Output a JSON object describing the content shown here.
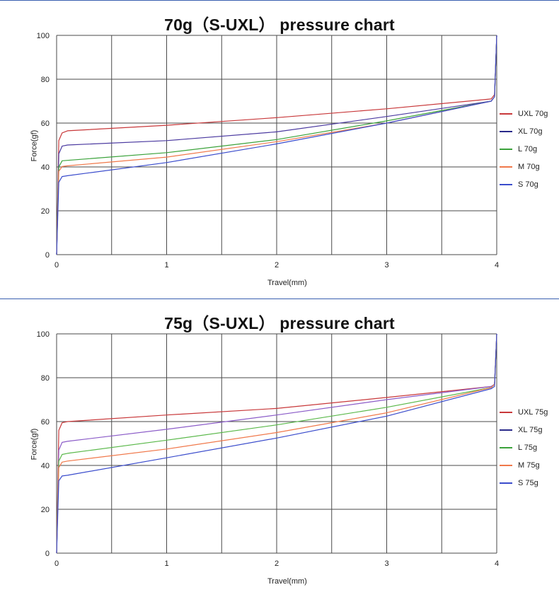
{
  "chart_data": [
    {
      "type": "line",
      "title": "70g（S-UXL） pressure chart",
      "xlabel": "Travel(mm)",
      "ylabel": "Force(gf)",
      "xlim": [
        0,
        4
      ],
      "ylim": [
        0,
        100
      ],
      "x_ticks": [
        "0",
        "1",
        "2",
        "3",
        "4"
      ],
      "y_ticks": [
        "0",
        "20",
        "40",
        "60",
        "80",
        "100"
      ],
      "grid": true,
      "legend_position": "right",
      "series": [
        {
          "name": "UXL 70g",
          "color": "#c8383a",
          "points": [
            [
              0,
              0
            ],
            [
              0.02,
              52
            ],
            [
              0.05,
              55.5
            ],
            [
              0.1,
              56.5
            ],
            [
              1,
              59
            ],
            [
              2,
              62.5
            ],
            [
              3,
              66.5
            ],
            [
              3.95,
              71
            ],
            [
              3.98,
              73
            ],
            [
              4,
              100
            ]
          ]
        },
        {
          "name": "XL 70g",
          "color": "#4b3aa0",
          "points": [
            [
              0,
              0
            ],
            [
              0.02,
              46
            ],
            [
              0.05,
              49.5
            ],
            [
              0.1,
              50
            ],
            [
              1,
              52
            ],
            [
              2,
              56
            ],
            [
              3,
              63
            ],
            [
              3.95,
              70
            ],
            [
              3.98,
              72
            ],
            [
              4,
              100
            ]
          ]
        },
        {
          "name": "L 70g",
          "color": "#3aa23a",
          "points": [
            [
              0,
              0
            ],
            [
              0.02,
              40
            ],
            [
              0.05,
              42.8
            ],
            [
              0.1,
              43
            ],
            [
              1,
              46.5
            ],
            [
              2,
              52.5
            ],
            [
              3,
              61
            ],
            [
              3.95,
              70
            ],
            [
              3.98,
              72
            ],
            [
              4,
              100
            ]
          ]
        },
        {
          "name": "M 70g",
          "color": "#f0784a",
          "points": [
            [
              0,
              0
            ],
            [
              0.02,
              38
            ],
            [
              0.05,
              40.2
            ],
            [
              0.1,
              40.5
            ],
            [
              1,
              44.5
            ],
            [
              2,
              51.5
            ],
            [
              3,
              60
            ],
            [
              3.95,
              70
            ],
            [
              3.98,
              72
            ],
            [
              4,
              100
            ]
          ]
        },
        {
          "name": "S 70g",
          "color": "#3a4ccc",
          "points": [
            [
              0,
              0
            ],
            [
              0.02,
              33
            ],
            [
              0.05,
              35.6
            ],
            [
              0.1,
              36
            ],
            [
              1,
              42
            ],
            [
              2,
              50.5
            ],
            [
              3,
              60
            ],
            [
              3.95,
              70
            ],
            [
              3.98,
              72
            ],
            [
              4,
              100
            ]
          ]
        }
      ]
    },
    {
      "type": "line",
      "title": "75g（S-UXL） pressure chart",
      "xlabel": "Travel(mm)",
      "ylabel": "Force(gf)",
      "xlim": [
        0,
        4
      ],
      "ylim": [
        0,
        100
      ],
      "x_ticks": [
        "0",
        "1",
        "2",
        "3",
        "4"
      ],
      "y_ticks": [
        "0",
        "20",
        "40",
        "60",
        "80",
        "100"
      ],
      "grid": true,
      "legend_position": "right",
      "series": [
        {
          "name": "UXL 75g",
          "color": "#c8383a",
          "points": [
            [
              0,
              0
            ],
            [
              0.02,
              56
            ],
            [
              0.05,
              59.5
            ],
            [
              0.1,
              60
            ],
            [
              1,
              63
            ],
            [
              2,
              66
            ],
            [
              3,
              71
            ],
            [
              3.95,
              76
            ],
            [
              3.98,
              77
            ],
            [
              4,
              100
            ]
          ]
        },
        {
          "name": "XL 75g",
          "color": "#8b5cc8",
          "points": [
            [
              0,
              0
            ],
            [
              0.02,
              47
            ],
            [
              0.05,
              50.5
            ],
            [
              0.1,
              51
            ],
            [
              1,
              56.5
            ],
            [
              2,
              63
            ],
            [
              3,
              70
            ],
            [
              3.95,
              76
            ],
            [
              3.98,
              77
            ],
            [
              4,
              100
            ]
          ]
        },
        {
          "name": "L 75g",
          "color": "#5ab84a",
          "points": [
            [
              0,
              0
            ],
            [
              0.02,
              42
            ],
            [
              0.05,
              45
            ],
            [
              0.1,
              45.5
            ],
            [
              1,
              51.5
            ],
            [
              2,
              58.5
            ],
            [
              3,
              66.5
            ],
            [
              3.95,
              75.5
            ],
            [
              3.98,
              77
            ],
            [
              4,
              100
            ]
          ]
        },
        {
          "name": "M 75g",
          "color": "#f0784a",
          "points": [
            [
              0,
              0
            ],
            [
              0.02,
              39
            ],
            [
              0.05,
              41.5
            ],
            [
              0.1,
              42
            ],
            [
              1,
              47.5
            ],
            [
              2,
              55
            ],
            [
              3,
              64
            ],
            [
              3.95,
              75.5
            ],
            [
              3.98,
              77
            ],
            [
              4,
              100
            ]
          ]
        },
        {
          "name": "S 75g",
          "color": "#3a4ccc",
          "points": [
            [
              0,
              0
            ],
            [
              0.02,
              33
            ],
            [
              0.05,
              35.2
            ],
            [
              0.1,
              35.5
            ],
            [
              1,
              43.5
            ],
            [
              2,
              52.5
            ],
            [
              3,
              62.5
            ],
            [
              3.95,
              75
            ],
            [
              3.98,
              76
            ],
            [
              4,
              100
            ]
          ]
        }
      ]
    }
  ],
  "legend_colors_70": [
    "#c8383a",
    "#2a2a8a",
    "#3aa23a",
    "#f0784a",
    "#3a4ccc"
  ],
  "legend_colors_75": [
    "#c8383a",
    "#2a2a8a",
    "#3aa23a",
    "#f0784a",
    "#3a4ccc"
  ]
}
